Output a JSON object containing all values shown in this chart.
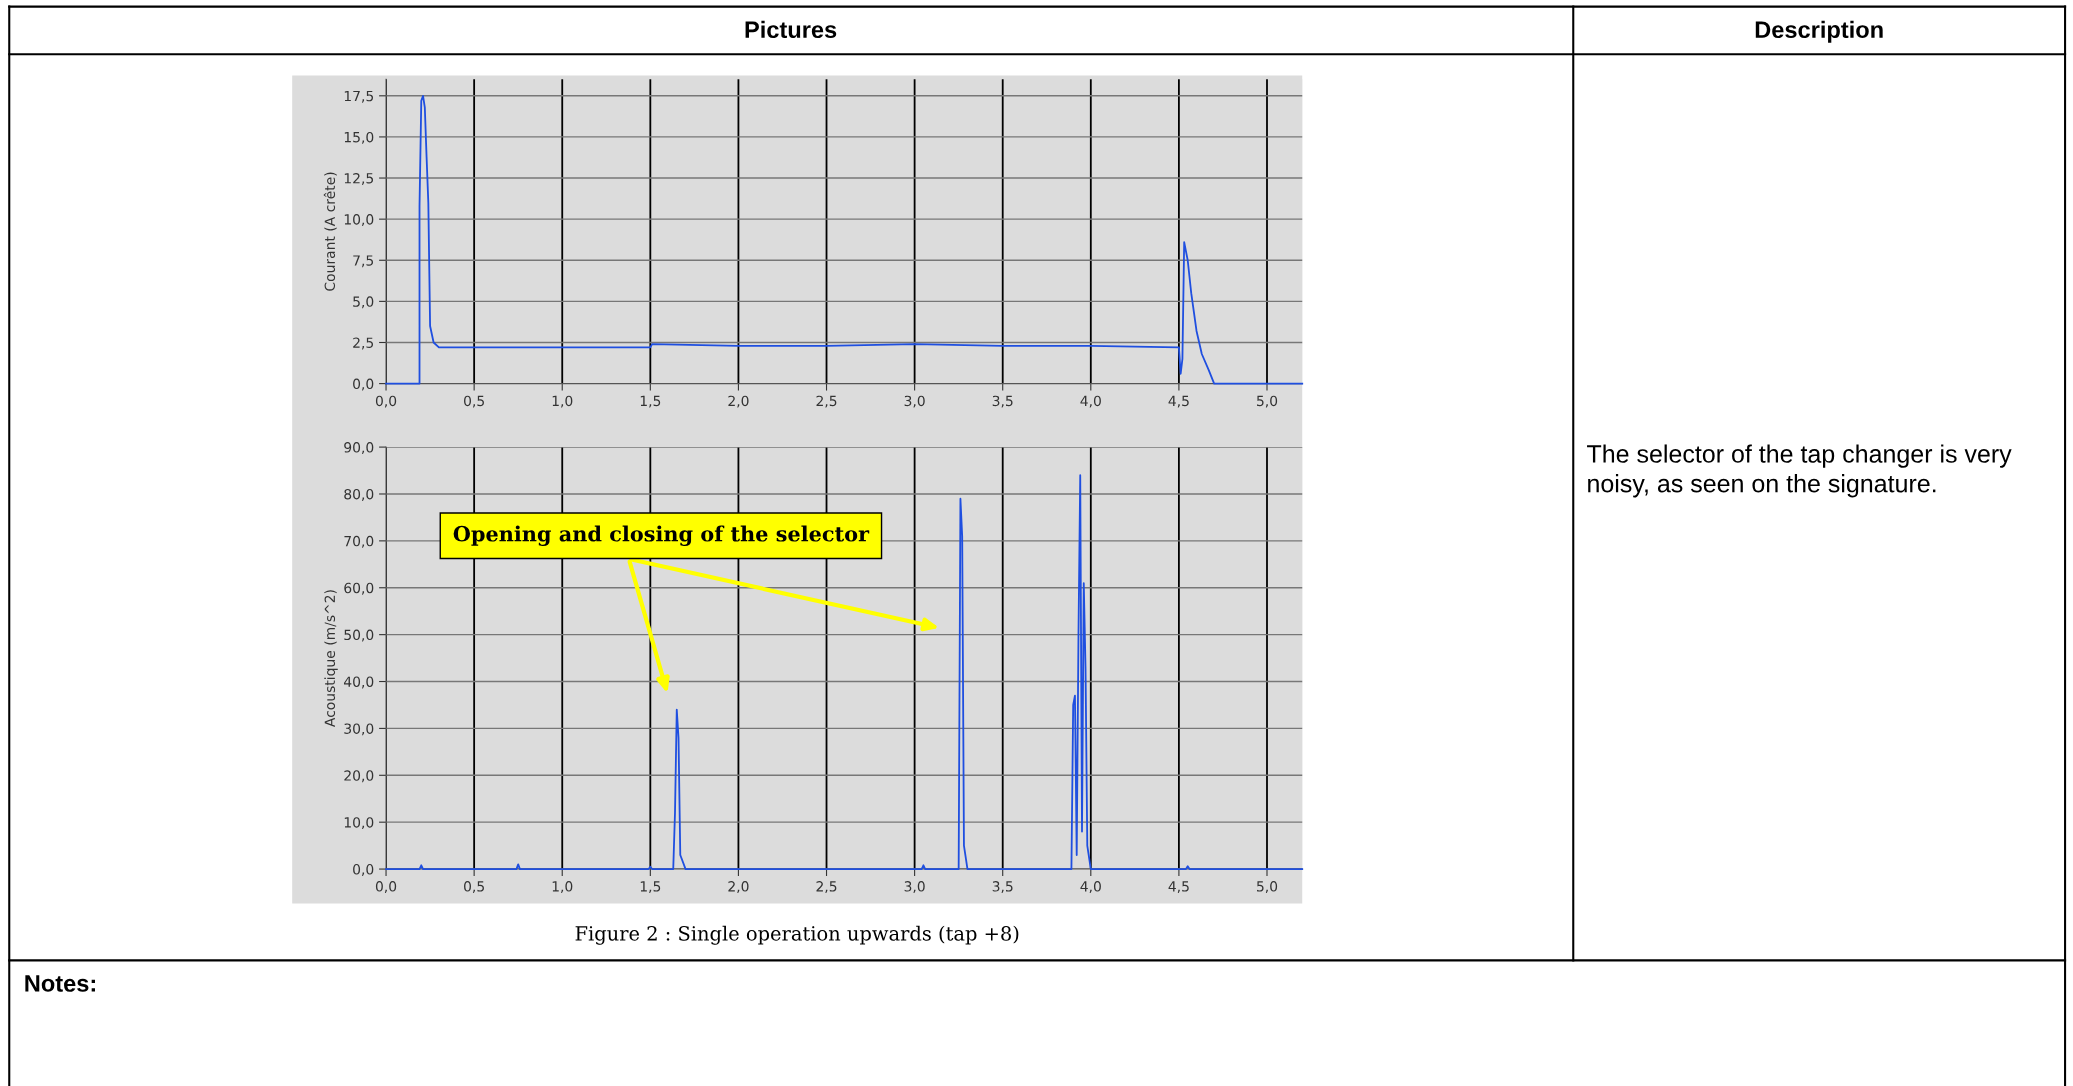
{
  "chart_data": [
    {
      "type": "line",
      "ylabel": "Courant (A crête)",
      "x": [
        0,
        0.19,
        0.19,
        0.2,
        0.21,
        0.22,
        0.23,
        0.24,
        0.25,
        0.27,
        0.3,
        0.5,
        1.0,
        1.5,
        1.51,
        2.0,
        2.5,
        3.0,
        3.5,
        4.0,
        4.5,
        4.51,
        4.52,
        4.53,
        4.55,
        4.57,
        4.6,
        4.63,
        4.67,
        4.7,
        5.2
      ],
      "series": [
        {
          "color": "#1f4fe0",
          "values": [
            0,
            0,
            10.8,
            17.2,
            17.5,
            16.8,
            13.8,
            11,
            3.5,
            2.5,
            2.2,
            2.2,
            2.2,
            2.2,
            2.4,
            2.3,
            2.3,
            2.4,
            2.3,
            2.3,
            2.2,
            0.6,
            1.5,
            8.6,
            7.5,
            5.5,
            3.2,
            1.8,
            0.8,
            0,
            0
          ]
        }
      ],
      "xlim": [
        0,
        5.2
      ],
      "ylim": [
        0,
        18.5
      ],
      "xticks": [
        {
          "value": 0,
          "label": "0,0"
        },
        {
          "value": 0.5,
          "label": "0,5"
        },
        {
          "value": 1,
          "label": "1,0"
        },
        {
          "value": 1.5,
          "label": "1,5"
        },
        {
          "value": 2,
          "label": "2,0"
        },
        {
          "value": 2.5,
          "label": "2,5"
        },
        {
          "value": 3,
          "label": "3,0"
        },
        {
          "value": 3.5,
          "label": "3,5"
        },
        {
          "value": 4,
          "label": "4,0"
        },
        {
          "value": 4.5,
          "label": "4,5"
        },
        {
          "value": 5,
          "label": "5,0"
        }
      ],
      "yticks": [
        {
          "value": 0,
          "label": "0,0"
        },
        {
          "value": 2.5,
          "label": "2,5"
        },
        {
          "value": 5,
          "label": "5,0"
        },
        {
          "value": 7.5,
          "label": "7,5"
        },
        {
          "value": 10,
          "label": "10,0"
        },
        {
          "value": 12.5,
          "label": "12,5"
        },
        {
          "value": 15,
          "label": "15,0"
        },
        {
          "value": 17.5,
          "label": "17,5"
        }
      ],
      "grid": true,
      "legend": false,
      "marker": "none",
      "line_style": "solid",
      "annotations": [
        "Pictures",
        "Description",
        "The selector of the tap changer is very noisy, as seen on the signature.",
        "Notes:"
      ]
    },
    {
      "type": "line",
      "ylabel": "Acoustique (m/s^2)",
      "x": [
        0,
        0.19,
        0.2,
        0.21,
        0.74,
        0.75,
        0.76,
        1.49,
        1.5,
        1.51,
        1.63,
        1.64,
        1.65,
        1.66,
        1.67,
        1.7,
        3.04,
        3.05,
        3.06,
        3.25,
        3.26,
        3.27,
        3.28,
        3.3,
        3.89,
        3.9,
        3.91,
        3.92,
        3.93,
        3.94,
        3.95,
        3.96,
        3.97,
        3.98,
        4.0,
        4.54,
        4.55,
        4.56,
        5.2
      ],
      "series": [
        {
          "color": "#1f4fe0",
          "values": [
            0,
            0,
            0.8,
            0,
            0,
            1,
            0,
            0,
            0.5,
            0,
            0,
            12,
            34,
            28,
            3,
            0,
            0,
            0.8,
            0,
            0,
            79,
            71,
            5,
            0,
            0,
            35,
            37,
            3,
            50,
            84,
            8,
            61,
            43,
            5,
            0,
            0,
            0.6,
            0,
            0
          ]
        }
      ],
      "xlim": [
        0,
        5.2
      ],
      "ylim": [
        0,
        90
      ],
      "xticks": [
        {
          "value": 0,
          "label": "0,0"
        },
        {
          "value": 0.5,
          "label": "0,5"
        },
        {
          "value": 1,
          "label": "1,0"
        },
        {
          "value": 1.5,
          "label": "1,5"
        },
        {
          "value": 2,
          "label": "2,0"
        },
        {
          "value": 2.5,
          "label": "2,5"
        },
        {
          "value": 3,
          "label": "3,0"
        },
        {
          "value": 3.5,
          "label": "3,5"
        },
        {
          "value": 4,
          "label": "4,0"
        },
        {
          "value": 4.5,
          "label": "4,5"
        },
        {
          "value": 5,
          "label": "5,0"
        }
      ],
      "yticks": [
        {
          "value": 0,
          "label": "0,0"
        },
        {
          "value": 10,
          "label": "10,0"
        },
        {
          "value": 20,
          "label": "20,0"
        },
        {
          "value": 30,
          "label": "30,0"
        },
        {
          "value": 40,
          "label": "40,0"
        },
        {
          "value": 50,
          "label": "50,0"
        },
        {
          "value": 60,
          "label": "60,0"
        },
        {
          "value": 70,
          "label": "70,0"
        },
        {
          "value": 80,
          "label": "80,0"
        },
        {
          "value": 90,
          "label": "90,0"
        }
      ],
      "grid": true,
      "legend": false,
      "marker": "none",
      "line_style": "solid",
      "annotations": [
        "Opening and closing of the selector",
        "Figure 2 : Single operation upwards (tap +8)"
      ]
    }
  ]
}
